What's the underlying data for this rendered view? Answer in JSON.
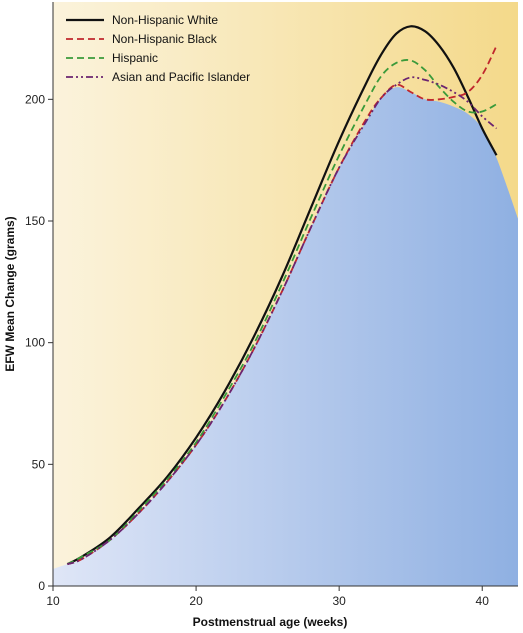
{
  "chart_data": {
    "type": "line",
    "title": "",
    "xlabel": "Postmenstrual age (weeks)",
    "ylabel": "EFW Mean Change (grams)",
    "xlim": [
      10,
      42.5
    ],
    "ylim": [
      0,
      240
    ],
    "xticks": [
      10,
      20,
      30,
      40
    ],
    "yticks": [
      0,
      50,
      100,
      150,
      200
    ],
    "legend_position": "top-left",
    "background": {
      "lower_region_color": "#8fb0e2",
      "upper_region_color": "#f4d98a"
    },
    "series": [
      {
        "name": "Non-Hispanic White",
        "color": "#111111",
        "dash": "solid",
        "x": [
          11,
          12,
          14,
          16,
          18,
          20,
          22,
          24,
          26,
          28,
          30,
          32,
          33,
          34,
          35,
          36,
          37,
          38,
          39,
          40,
          41
        ],
        "y": [
          9,
          12,
          20,
          32,
          45,
          61,
          80,
          102,
          127,
          155,
          183,
          208,
          219,
          227,
          230,
          228,
          222,
          213,
          201,
          188,
          177
        ]
      },
      {
        "name": "Non-Hispanic Black",
        "color": "#c0272d",
        "dash": "dashed",
        "x": [
          11,
          12,
          14,
          16,
          18,
          20,
          22,
          24,
          26,
          28,
          30,
          32,
          33,
          34,
          35,
          36,
          37,
          38,
          39,
          40,
          41
        ],
        "y": [
          9,
          11,
          19,
          30,
          43,
          58,
          76,
          97,
          121,
          147,
          172,
          193,
          201,
          206,
          203,
          200,
          200,
          201,
          203,
          210,
          222
        ]
      },
      {
        "name": "Hispanic",
        "color": "#3a9a3a",
        "dash": "dashed",
        "x": [
          11,
          12,
          14,
          16,
          18,
          20,
          22,
          24,
          26,
          28,
          30,
          32,
          33,
          34,
          35,
          36,
          37,
          38,
          39,
          40,
          41
        ],
        "y": [
          9,
          12,
          19,
          31,
          44,
          59,
          78,
          99,
          124,
          151,
          177,
          200,
          210,
          215,
          216,
          212,
          205,
          199,
          195,
          195,
          198
        ]
      },
      {
        "name": "Asian and Pacific Islander",
        "color": "#6b2470",
        "dash": "dashdotdot",
        "x": [
          11,
          12,
          14,
          16,
          18,
          20,
          22,
          24,
          26,
          28,
          30,
          32,
          33,
          34,
          35,
          36,
          37,
          38,
          39,
          40,
          41
        ],
        "y": [
          9,
          11,
          19,
          30,
          43,
          58,
          76,
          97,
          121,
          147,
          172,
          192,
          201,
          206,
          209,
          208,
          206,
          203,
          199,
          193,
          188
        ]
      }
    ]
  }
}
